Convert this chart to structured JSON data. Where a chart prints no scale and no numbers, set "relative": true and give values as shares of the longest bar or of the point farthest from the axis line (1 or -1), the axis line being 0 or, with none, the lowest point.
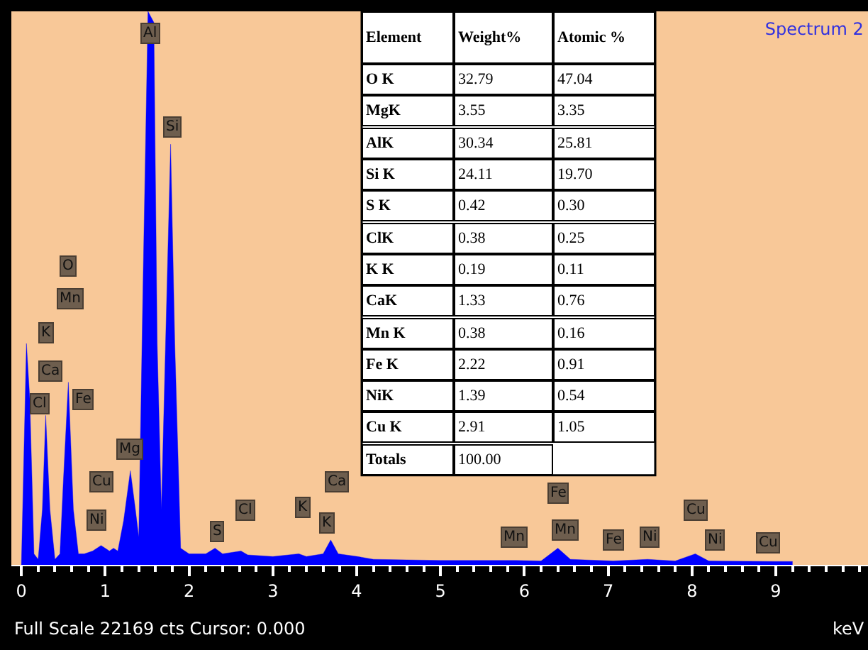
{
  "chart_data": {
    "type": "area",
    "relative": true,
    "title": "Spectrum 2",
    "xlabel": "keV",
    "xlim": [
      -0.12,
      10.1
    ],
    "xticks": [
      0,
      1,
      2,
      3,
      4,
      5,
      6,
      7,
      8,
      9
    ],
    "grid": false,
    "series": [
      {
        "color": "#0000ff",
        "x": [
          0.0,
          0.03,
          0.06,
          0.1,
          0.15,
          0.2,
          0.25,
          0.29,
          0.34,
          0.4,
          0.46,
          0.5,
          0.56,
          0.62,
          0.68,
          0.75,
          0.85,
          0.95,
          1.0,
          1.05,
          1.1,
          1.15,
          1.22,
          1.3,
          1.36,
          1.4,
          1.45,
          1.51,
          1.58,
          1.62,
          1.67,
          1.72,
          1.78,
          1.83,
          1.9,
          2.0,
          2.2,
          2.31,
          2.4,
          2.62,
          2.7,
          3.0,
          3.31,
          3.4,
          3.6,
          3.69,
          3.78,
          4.01,
          4.2,
          5.0,
          5.9,
          6.2,
          6.4,
          6.55,
          7.06,
          7.47,
          7.8,
          8.04,
          8.2,
          9.0,
          9.2
        ],
        "values": [
          0,
          0.2,
          0.4,
          0.3,
          0.02,
          0.01,
          0.1,
          0.27,
          0.1,
          0.01,
          0.02,
          0.15,
          0.33,
          0.1,
          0.02,
          0.02,
          0.025,
          0.035,
          0.03,
          0.025,
          0.03,
          0.025,
          0.08,
          0.17,
          0.1,
          0.05,
          0.5,
          1.0,
          0.98,
          0.4,
          0.1,
          0.4,
          0.76,
          0.4,
          0.03,
          0.02,
          0.02,
          0.03,
          0.02,
          0.025,
          0.018,
          0.015,
          0.02,
          0.015,
          0.02,
          0.045,
          0.02,
          0.015,
          0.01,
          0.008,
          0.008,
          0.007,
          0.03,
          0.01,
          0.007,
          0.01,
          0.007,
          0.02,
          0.007,
          0.006,
          0.006
        ]
      }
    ],
    "annotations": [
      {
        "text": "Al",
        "x": 1.54,
        "y": 0.96
      },
      {
        "text": "Si",
        "x": 1.8,
        "y": 0.79
      },
      {
        "text": "O",
        "x": 0.56,
        "y": 0.54
      },
      {
        "text": "Mn",
        "x": 0.58,
        "y": 0.48
      },
      {
        "text": "K",
        "x": 0.29,
        "y": 0.42
      },
      {
        "text": "Ca",
        "x": 0.34,
        "y": 0.35
      },
      {
        "text": "Cl",
        "x": 0.22,
        "y": 0.29
      },
      {
        "text": "Fe",
        "x": 0.73,
        "y": 0.3
      },
      {
        "text": "Mg",
        "x": 1.29,
        "y": 0.21
      },
      {
        "text": "Cu",
        "x": 0.95,
        "y": 0.15
      },
      {
        "text": "Ni",
        "x": 0.9,
        "y": 0.08
      },
      {
        "text": "S",
        "x": 2.34,
        "y": 0.06
      },
      {
        "text": "Cl",
        "x": 2.68,
        "y": 0.1
      },
      {
        "text": "K",
        "x": 3.36,
        "y": 0.105
      },
      {
        "text": "Ca",
        "x": 3.77,
        "y": 0.15
      },
      {
        "text": "K",
        "x": 3.65,
        "y": 0.075
      },
      {
        "text": "Mn",
        "x": 5.88,
        "y": 0.049
      },
      {
        "text": "Fe",
        "x": 6.4,
        "y": 0.13
      },
      {
        "text": "Mn",
        "x": 6.49,
        "y": 0.064
      },
      {
        "text": "Fe",
        "x": 7.06,
        "y": 0.046
      },
      {
        "text": "Ni",
        "x": 7.49,
        "y": 0.049
      },
      {
        "text": "Cu",
        "x": 8.04,
        "y": 0.1
      },
      {
        "text": "Ni",
        "x": 8.27,
        "y": 0.044
      },
      {
        "text": "Cu",
        "x": 8.9,
        "y": 0.041
      },
      "Full Scale 22169 cts Cursor: 0.000",
      "Element",
      "Weight%",
      "Atomic %",
      "O K",
      "32.79",
      "47.04",
      "MgK",
      "3.55",
      "3.35",
      "AlK",
      "30.34",
      "25.81",
      "Si K",
      "24.11",
      "19.70",
      "S K",
      "0.42",
      "0.30",
      "ClK",
      "0.38",
      "0.25",
      "K K",
      "0.19",
      "0.11",
      "CaK",
      "1.33",
      "0.76",
      "Mn K",
      "0.38",
      "0.16",
      "Fe K",
      "2.22",
      "0.91",
      "NiK",
      "1.39",
      "0.54",
      "Cu K",
      "2.91",
      "1.05",
      "Totals",
      "100.00"
    ]
  }
}
